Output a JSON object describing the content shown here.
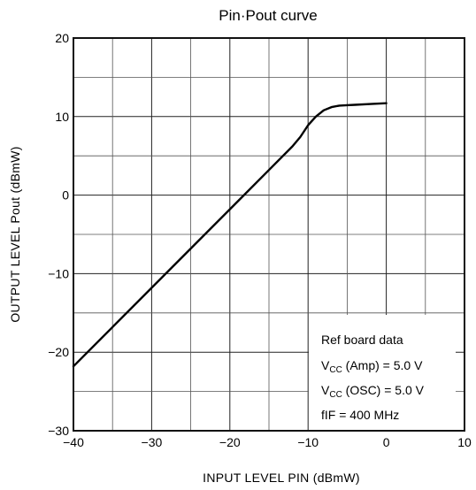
{
  "chart_data": {
    "type": "line",
    "title": "Pin·Pout curve",
    "xlabel": "INPUT LEVEL PIN   (dBmW)",
    "ylabel": "OUTPUT LEVEL   Pout   (dBmW)",
    "xlim": [
      -40,
      10
    ],
    "ylim": [
      -30,
      20
    ],
    "grid": true,
    "x_major_ticks": [
      -40,
      -30,
      -20,
      -10,
      0,
      10
    ],
    "y_major_ticks": [
      -30,
      -20,
      -10,
      0,
      10,
      20
    ],
    "x_tick_labels": [
      "−40",
      "−30",
      "−20",
      "−10",
      "0",
      "10"
    ],
    "y_tick_labels": [
      "−30",
      "−20",
      "−10",
      "0",
      "10",
      "20"
    ],
    "x_minor_ticks": [
      -35,
      -25,
      -15,
      -5,
      5
    ],
    "y_minor_ticks": [
      -25,
      -15,
      -5,
      5,
      15
    ],
    "series": [
      {
        "x": [
          -40,
          -35,
          -30,
          -25,
          -20,
          -15,
          -12,
          -11,
          -10,
          -9,
          -8,
          -7,
          -6,
          -5,
          -4,
          -2,
          0
        ],
        "y": [
          -21.8,
          -16.8,
          -11.8,
          -6.8,
          -1.8,
          3.2,
          6.2,
          7.4,
          8.9,
          10.0,
          10.8,
          11.2,
          11.4,
          11.45,
          11.5,
          11.6,
          11.7
        ]
      }
    ],
    "annotation": {
      "line1": "Ref board data",
      "line2": {
        "pre": "V",
        "sub": "CC",
        "post": " (Amp)  =  5.0 V"
      },
      "line3": {
        "pre": "V",
        "sub": "CC",
        "post": " (OSC)  =  5.0 V"
      },
      "line4": "fIF  =  400 MHz"
    }
  }
}
